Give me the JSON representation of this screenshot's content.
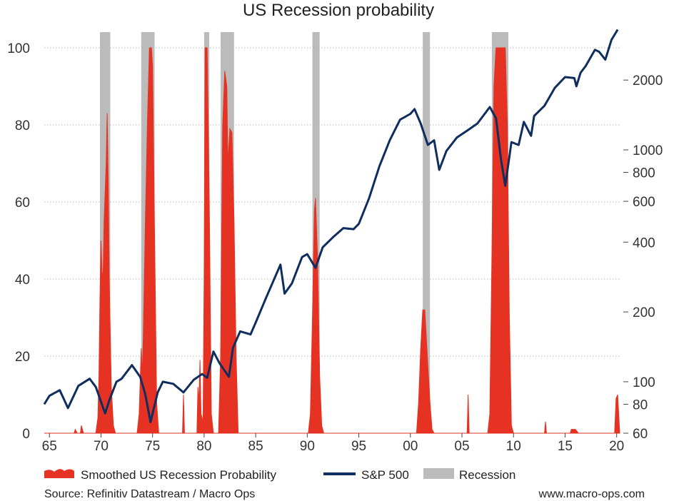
{
  "chart_data": {
    "title": "US Recession probability",
    "type": "area",
    "x_range": [
      1964.5,
      2020.3
    ],
    "x_ticks": [
      {
        "value": 1965,
        "label": "65"
      },
      {
        "value": 1970,
        "label": "70"
      },
      {
        "value": 1975,
        "label": "75"
      },
      {
        "value": 1980,
        "label": "80"
      },
      {
        "value": 1985,
        "label": "85"
      },
      {
        "value": 1990,
        "label": "90"
      },
      {
        "value": 1995,
        "label": "95"
      },
      {
        "value": 2000,
        "label": "00"
      },
      {
        "value": 2005,
        "label": "05"
      },
      {
        "value": 2010,
        "label": "10"
      },
      {
        "value": 2015,
        "label": "15"
      },
      {
        "value": 2020,
        "label": "20"
      }
    ],
    "y_left": {
      "range": [
        0,
        105
      ],
      "ticks": [
        0,
        20,
        40,
        60,
        80,
        100
      ]
    },
    "y_right": {
      "scale": "log",
      "range": [
        60,
        3200
      ],
      "ticks": [
        60,
        80,
        100,
        200,
        400,
        600,
        800,
        1000,
        2000
      ]
    },
    "grid": "horizontal dotted",
    "colors": {
      "probability": "#e63222",
      "sp500": "#0f2d5e",
      "recession": "#bbbbbb"
    },
    "recessions": [
      [
        1969.9,
        1970.9
      ],
      [
        1973.9,
        1975.2
      ],
      [
        1980.0,
        1980.5
      ],
      [
        1981.6,
        1982.9
      ],
      [
        1990.5,
        1991.2
      ],
      [
        2001.2,
        2001.9
      ],
      [
        2007.9,
        2009.5
      ]
    ],
    "series": [
      {
        "name": "Smoothed US Recession Probability",
        "axis": "left",
        "points": [
          [
            1964.5,
            0
          ],
          [
            1967.4,
            0
          ],
          [
            1967.5,
            1
          ],
          [
            1967.7,
            0
          ],
          [
            1968.0,
            0
          ],
          [
            1968.1,
            2
          ],
          [
            1968.3,
            0
          ],
          [
            1969.5,
            0
          ],
          [
            1969.7,
            4
          ],
          [
            1969.8,
            15
          ],
          [
            1969.9,
            35
          ],
          [
            1970.0,
            50
          ],
          [
            1970.1,
            42
          ],
          [
            1970.2,
            40
          ],
          [
            1970.3,
            55
          ],
          [
            1970.5,
            70
          ],
          [
            1970.6,
            83
          ],
          [
            1970.7,
            65
          ],
          [
            1970.8,
            40
          ],
          [
            1971.0,
            12
          ],
          [
            1971.2,
            2
          ],
          [
            1971.4,
            0
          ],
          [
            1973.5,
            0
          ],
          [
            1973.7,
            5
          ],
          [
            1973.9,
            22
          ],
          [
            1974.0,
            15
          ],
          [
            1974.1,
            25
          ],
          [
            1974.3,
            55
          ],
          [
            1974.5,
            80
          ],
          [
            1974.7,
            100
          ],
          [
            1974.9,
            100
          ],
          [
            1975.0,
            95
          ],
          [
            1975.2,
            50
          ],
          [
            1975.4,
            8
          ],
          [
            1975.6,
            0
          ],
          [
            1977.9,
            0
          ],
          [
            1978.0,
            10
          ],
          [
            1978.1,
            0
          ],
          [
            1979.3,
            0
          ],
          [
            1979.4,
            12
          ],
          [
            1979.5,
            8
          ],
          [
            1979.6,
            19
          ],
          [
            1979.7,
            5
          ],
          [
            1979.9,
            3
          ],
          [
            1980.0,
            40
          ],
          [
            1980.1,
            100
          ],
          [
            1980.3,
            100
          ],
          [
            1980.5,
            60
          ],
          [
            1980.7,
            5
          ],
          [
            1980.9,
            0
          ],
          [
            1981.4,
            0
          ],
          [
            1981.6,
            20
          ],
          [
            1981.8,
            80
          ],
          [
            1982.0,
            94
          ],
          [
            1982.2,
            90
          ],
          [
            1982.3,
            70
          ],
          [
            1982.5,
            79
          ],
          [
            1982.7,
            78
          ],
          [
            1982.9,
            55
          ],
          [
            1983.1,
            20
          ],
          [
            1983.3,
            0
          ],
          [
            1990.1,
            0
          ],
          [
            1990.3,
            5
          ],
          [
            1990.5,
            30
          ],
          [
            1990.7,
            58
          ],
          [
            1990.8,
            61
          ],
          [
            1991.0,
            45
          ],
          [
            1991.2,
            15
          ],
          [
            1991.4,
            2
          ],
          [
            1991.6,
            0
          ],
          [
            2000.6,
            0
          ],
          [
            2000.8,
            8
          ],
          [
            2001.0,
            22
          ],
          [
            2001.2,
            32
          ],
          [
            2001.4,
            32
          ],
          [
            2001.6,
            22
          ],
          [
            2001.9,
            8
          ],
          [
            2002.1,
            1
          ],
          [
            2002.3,
            0
          ],
          [
            2005.5,
            0
          ],
          [
            2005.6,
            10
          ],
          [
            2005.7,
            0
          ],
          [
            2007.5,
            0
          ],
          [
            2007.7,
            5
          ],
          [
            2007.9,
            45
          ],
          [
            2008.1,
            90
          ],
          [
            2008.3,
            100
          ],
          [
            2008.6,
            100
          ],
          [
            2008.9,
            100
          ],
          [
            2009.2,
            100
          ],
          [
            2009.4,
            80
          ],
          [
            2009.6,
            30
          ],
          [
            2009.8,
            2
          ],
          [
            2010.0,
            0
          ],
          [
            2013.0,
            0
          ],
          [
            2013.1,
            3
          ],
          [
            2013.2,
            0
          ],
          [
            2015.5,
            0
          ],
          [
            2015.6,
            1
          ],
          [
            2016.0,
            1
          ],
          [
            2016.3,
            0
          ],
          [
            2019.8,
            0
          ],
          [
            2019.95,
            9
          ],
          [
            2020.1,
            10
          ],
          [
            2020.3,
            0
          ]
        ]
      },
      {
        "name": "S&P 500",
        "axis": "right",
        "points": [
          [
            1964.5,
            80
          ],
          [
            1965.0,
            87
          ],
          [
            1966.0,
            92
          ],
          [
            1966.8,
            77
          ],
          [
            1967.8,
            96
          ],
          [
            1968.9,
            103
          ],
          [
            1969.5,
            95
          ],
          [
            1970.4,
            73
          ],
          [
            1970.8,
            83
          ],
          [
            1971.5,
            100
          ],
          [
            1972.0,
            103
          ],
          [
            1973.0,
            118
          ],
          [
            1973.8,
            105
          ],
          [
            1974.3,
            88
          ],
          [
            1974.8,
            67
          ],
          [
            1975.5,
            90
          ],
          [
            1976.0,
            100
          ],
          [
            1977.0,
            98
          ],
          [
            1978.0,
            90
          ],
          [
            1979.0,
            102
          ],
          [
            1979.8,
            108
          ],
          [
            1980.3,
            104
          ],
          [
            1980.9,
            135
          ],
          [
            1981.5,
            120
          ],
          [
            1982.4,
            105
          ],
          [
            1982.8,
            140
          ],
          [
            1983.5,
            165
          ],
          [
            1984.5,
            160
          ],
          [
            1985.0,
            180
          ],
          [
            1986.0,
            230
          ],
          [
            1987.4,
            320
          ],
          [
            1987.8,
            240
          ],
          [
            1988.5,
            265
          ],
          [
            1989.5,
            345
          ],
          [
            1990.0,
            355
          ],
          [
            1990.8,
            310
          ],
          [
            1991.5,
            380
          ],
          [
            1992.5,
            420
          ],
          [
            1993.5,
            460
          ],
          [
            1994.5,
            455
          ],
          [
            1995.0,
            480
          ],
          [
            1996.0,
            620
          ],
          [
            1997.0,
            850
          ],
          [
            1998.0,
            1100
          ],
          [
            1999.0,
            1350
          ],
          [
            2000.0,
            1430
          ],
          [
            2000.4,
            1500
          ],
          [
            2001.0,
            1300
          ],
          [
            2001.7,
            1050
          ],
          [
            2002.3,
            1100
          ],
          [
            2002.8,
            820
          ],
          [
            2003.5,
            990
          ],
          [
            2004.5,
            1130
          ],
          [
            2005.5,
            1210
          ],
          [
            2006.5,
            1300
          ],
          [
            2007.7,
            1530
          ],
          [
            2008.3,
            1370
          ],
          [
            2008.8,
            900
          ],
          [
            2009.2,
            700
          ],
          [
            2009.8,
            1080
          ],
          [
            2010.5,
            1050
          ],
          [
            2011.0,
            1320
          ],
          [
            2011.7,
            1150
          ],
          [
            2012.0,
            1400
          ],
          [
            2013.0,
            1550
          ],
          [
            2014.0,
            1850
          ],
          [
            2015.0,
            2060
          ],
          [
            2015.9,
            2040
          ],
          [
            2016.1,
            1880
          ],
          [
            2016.5,
            2150
          ],
          [
            2017.0,
            2300
          ],
          [
            2017.9,
            2700
          ],
          [
            2018.3,
            2650
          ],
          [
            2018.9,
            2450
          ],
          [
            2019.5,
            2980
          ],
          [
            2020.1,
            3300
          ]
        ]
      }
    ],
    "legend": {
      "placement": "bottom",
      "items": [
        {
          "label": "Smoothed US Recession Probability",
          "symbol": "area",
          "color": "#e63222"
        },
        {
          "label": "S&P 500",
          "symbol": "line",
          "color": "#0f2d5e"
        },
        {
          "label": "Recession",
          "symbol": "rect",
          "color": "#bbbbbb"
        }
      ]
    },
    "source": "Source: Refinitiv Datastream / Macro Ops",
    "credit": "www.macro-ops.com"
  }
}
